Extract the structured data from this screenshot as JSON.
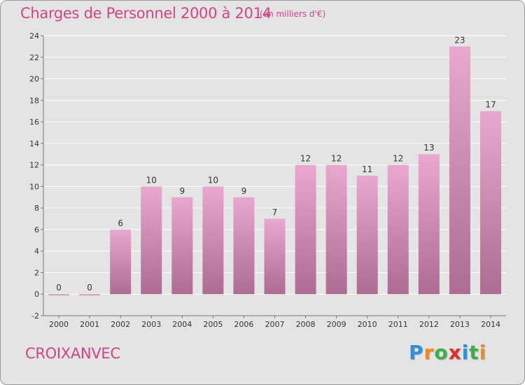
{
  "title": "Charges de Personnel 2000 à 2014",
  "subtitle": "(en milliers d'€)",
  "commune": "CROIXANVEC",
  "brand": {
    "letters": [
      "P",
      "r",
      "o",
      "x",
      "i",
      "t",
      "i"
    ],
    "colors": [
      "#2f8fd8",
      "#f08a1c",
      "#3bb04a",
      "#e0302a",
      "#2f8fd8",
      "#3bb04a",
      "#f08a1c"
    ]
  },
  "colors": {
    "text_accent": "#d04585",
    "bar_top": "#e8a8cf",
    "bar_bottom": "#ad6c92",
    "grid": "#ffffff",
    "axis": "#777777",
    "background": "#e4e4e4"
  },
  "chart_data": {
    "type": "bar",
    "categories": [
      "2000",
      "2001",
      "2002",
      "2003",
      "2004",
      "2005",
      "2006",
      "2007",
      "2008",
      "2009",
      "2010",
      "2011",
      "2012",
      "2013",
      "2014"
    ],
    "values": [
      0,
      0,
      6,
      10,
      9,
      10,
      9,
      7,
      12,
      12,
      11,
      12,
      13,
      23,
      17
    ],
    "value_labels": [
      "0",
      "0",
      "6",
      "10",
      "9",
      "10",
      "9",
      "7",
      "12",
      "12",
      "11",
      "12",
      "13",
      "23",
      "17"
    ],
    "ylim": [
      -2,
      24
    ],
    "yticks": [
      -2,
      0,
      2,
      4,
      6,
      8,
      10,
      12,
      14,
      16,
      18,
      20,
      22,
      24
    ],
    "ytick_labels": [
      "-2",
      "0",
      "2",
      "4",
      "6",
      "8",
      "10",
      "12",
      "14",
      "16",
      "18",
      "20",
      "22",
      "24"
    ],
    "grid": true,
    "xlabel": "",
    "ylabel": ""
  }
}
